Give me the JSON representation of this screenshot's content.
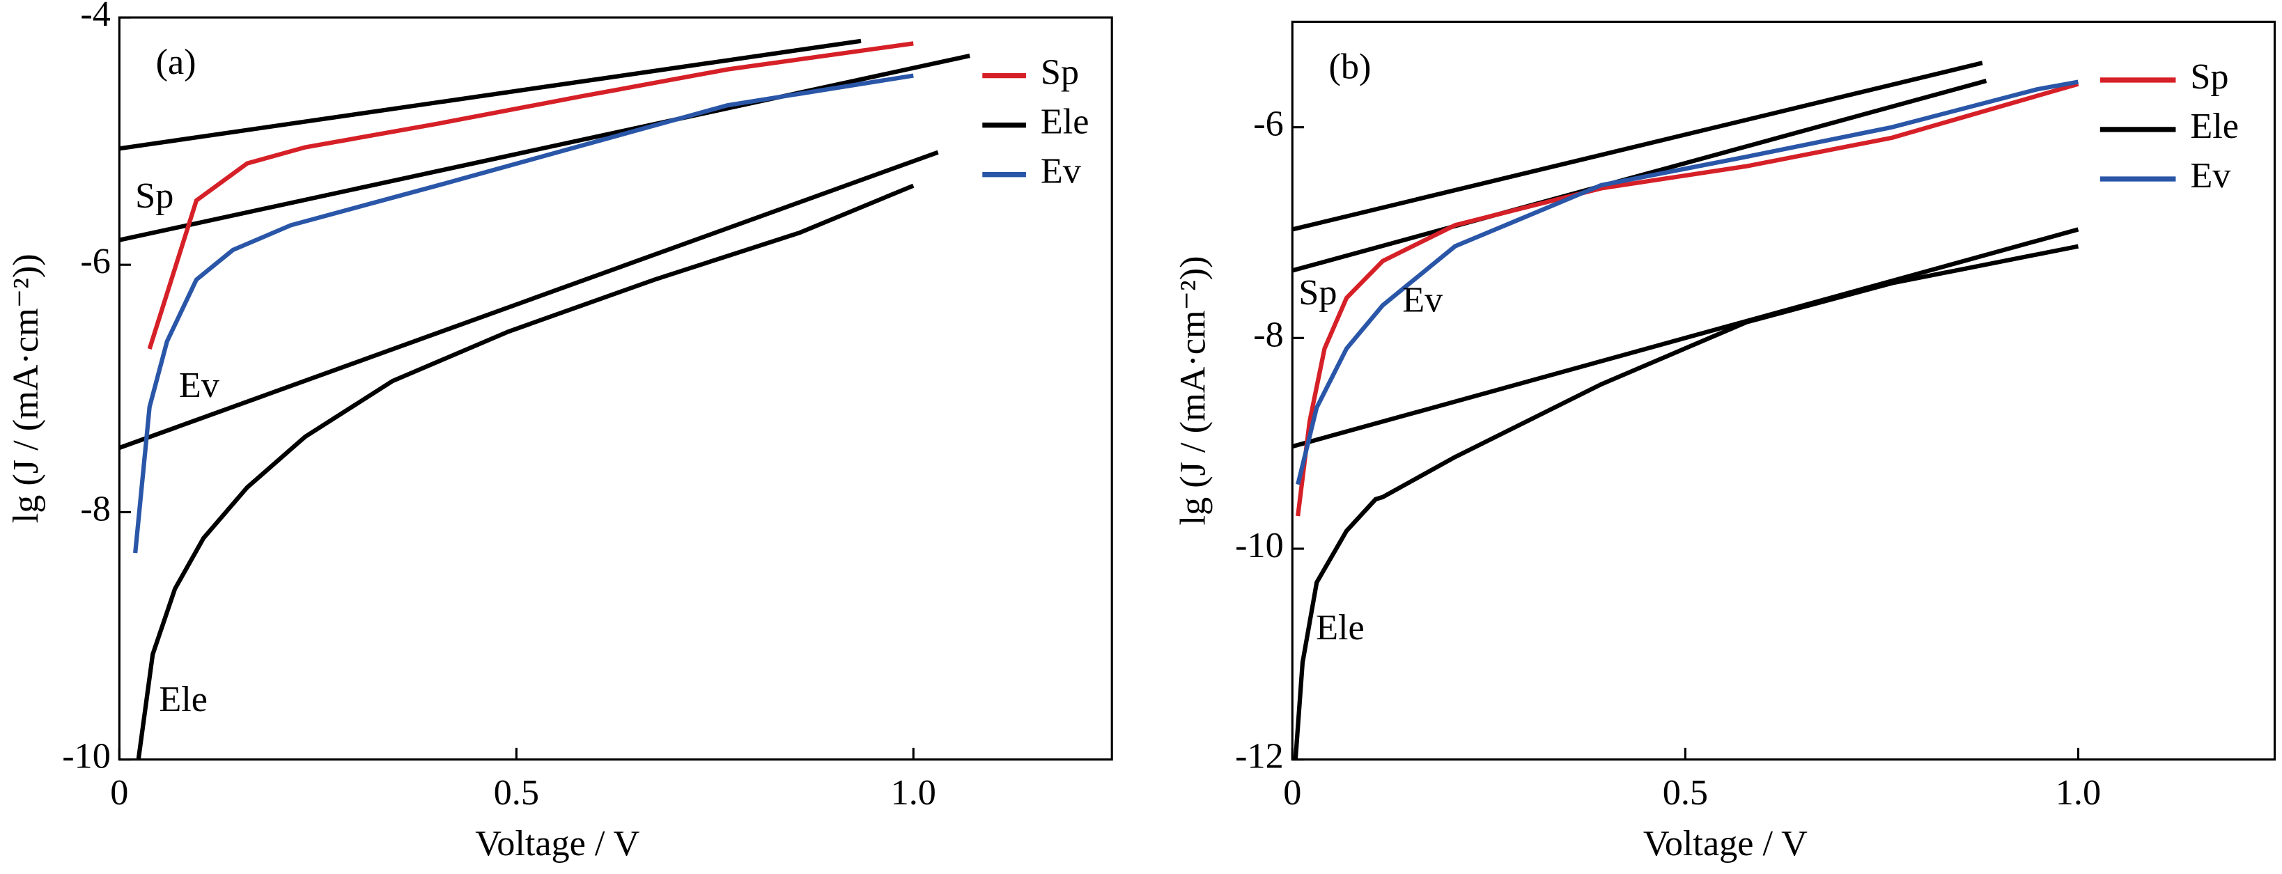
{
  "chart_data": [
    {
      "type": "line",
      "panel_label": "(a)",
      "xlabel": "Voltage / V",
      "ylabel": "lg (J / (mA·cm⁻²))",
      "xlim": [
        0,
        1.25
      ],
      "ylim": [
        -10,
        -4
      ],
      "xticks": [
        0,
        0.5,
        {
          "value": 1,
          "label": "1.0"
        }
      ],
      "yticks": [
        -4,
        -6,
        -8,
        -10
      ],
      "legend": "upper right",
      "series": [
        {
          "name": "Sp",
          "color": "#d62027",
          "x": [
            0.038,
            0.097,
            0.161,
            0.234,
            0.4,
            0.58,
            0.766,
            1.0
          ],
          "values": [
            -6.68,
            -5.48,
            -5.18,
            -5.05,
            -4.86,
            -4.64,
            -4.42,
            -4.21
          ]
        },
        {
          "name": "Ele",
          "color": "#000000",
          "x": [
            0.024,
            0.042,
            0.07,
            0.106,
            0.161,
            0.234,
            0.344,
            0.49,
            0.674,
            0.857,
            1.0
          ],
          "values": [
            -10,
            -9.15,
            -8.62,
            -8.21,
            -7.8,
            -7.39,
            -6.94,
            -6.54,
            -6.12,
            -5.74,
            -5.36
          ]
        },
        {
          "name": "Ev",
          "color": "#2a56a8",
          "x": [
            0.02,
            0.038,
            0.06,
            0.097,
            0.143,
            0.216,
            0.4,
            0.58,
            0.766,
            1.0
          ],
          "values": [
            -8.33,
            -7.15,
            -6.62,
            -6.12,
            -5.88,
            -5.68,
            -5.36,
            -5.04,
            -4.71,
            -4.47
          ]
        }
      ],
      "fit_lines": [
        {
          "color": "#000000",
          "x": [
            0,
            0.934
          ],
          "values": [
            -5.06,
            -4.19
          ]
        },
        {
          "color": "#000000",
          "x": [
            0,
            1.071
          ],
          "values": [
            -5.8,
            -4.31
          ]
        },
        {
          "color": "#000000",
          "x": [
            0,
            1.031
          ],
          "values": [
            -7.48,
            -5.09
          ]
        }
      ],
      "annotations": [
        {
          "text": "Sp",
          "x": 0.02,
          "y": -5.47
        },
        {
          "text": "Ev",
          "x": 0.075,
          "y": -7.0
        },
        {
          "text": "Ele",
          "x": 0.05,
          "y": -9.54
        }
      ]
    },
    {
      "type": "line",
      "panel_label": "(b)",
      "xlabel": "Voltage / V",
      "ylabel": "lg (J / (mA·cm⁻²))",
      "xlim": [
        0,
        1.25
      ],
      "ylim": [
        -12,
        -5
      ],
      "xticks": [
        0,
        0.5,
        {
          "value": 1,
          "label": "1.0"
        }
      ],
      "yticks": [
        -6,
        -8,
        -10,
        -12
      ],
      "legend": "upper right",
      "series": [
        {
          "name": "Sp",
          "color": "#d62027",
          "x": [
            0.007,
            0.022,
            0.041,
            0.069,
            0.115,
            0.207,
            0.393,
            0.578,
            0.763,
            1.0
          ],
          "values": [
            -9.69,
            -8.79,
            -8.1,
            -7.62,
            -7.27,
            -6.93,
            -6.58,
            -6.37,
            -6.1,
            -5.59
          ]
        },
        {
          "name": "Ele",
          "color": "#000000",
          "x": [
            0.004,
            0.013,
            0.031,
            0.069,
            0.106,
            0.115,
            0.207,
            0.393,
            0.578,
            0.763,
            1.0
          ],
          "values": [
            -12,
            -11.08,
            -10.32,
            -9.83,
            -9.53,
            -9.51,
            -9.13,
            -8.44,
            -7.85,
            -7.48,
            -7.13
          ]
        },
        {
          "name": "Ev",
          "color": "#2a56a8",
          "x": [
            0.007,
            0.031,
            0.069,
            0.115,
            0.207,
            0.393,
            0.578,
            0.763,
            0.948,
            1.0
          ],
          "values": [
            -9.39,
            -8.66,
            -8.1,
            -7.69,
            -7.13,
            -6.55,
            -6.28,
            -6.0,
            -5.64,
            -5.57
          ]
        }
      ],
      "fit_lines": [
        {
          "color": "#000000",
          "x": [
            0,
            0.878
          ],
          "values": [
            -6.97,
            -5.39
          ]
        },
        {
          "color": "#000000",
          "x": [
            0,
            0.883
          ],
          "values": [
            -7.36,
            -5.56
          ]
        },
        {
          "color": "#000000",
          "x": [
            0,
            1.0
          ],
          "values": [
            -9.03,
            -6.97
          ]
        }
      ],
      "annotations": [
        {
          "text": "Sp",
          "x": 0.008,
          "y": -7.6
        },
        {
          "text": "Ev",
          "x": 0.14,
          "y": -7.67
        },
        {
          "text": "Ele",
          "x": 0.03,
          "y": -10.78
        }
      ]
    }
  ]
}
